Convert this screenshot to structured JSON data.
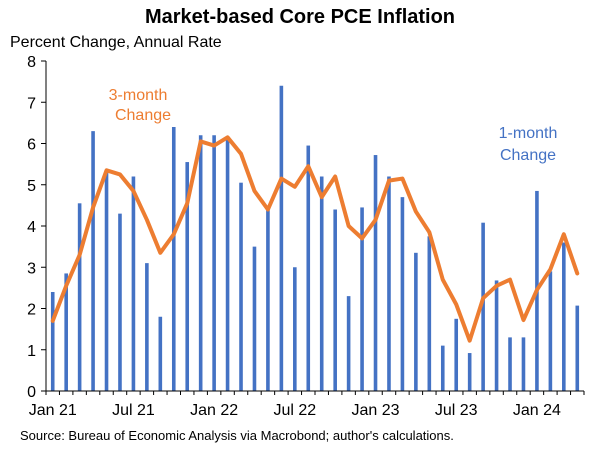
{
  "chart_data": {
    "type": "bar+line",
    "title": "Market-based Core PCE Inflation",
    "subtitle": "Percent Change, Annual Rate",
    "source": "Source: Bureau of Economic Analysis via Macrobond; author's calculations.",
    "ylim": [
      0,
      8
    ],
    "yticks": [
      0,
      1,
      2,
      3,
      4,
      5,
      6,
      7,
      8
    ],
    "x_tick_labels": [
      "Jan 21",
      "Jul 21",
      "Jan 22",
      "Jul 22",
      "Jan 23",
      "Jul 23",
      "Jan 24"
    ],
    "x_tick_month_index": [
      0,
      6,
      12,
      18,
      24,
      30,
      36
    ],
    "x_start": "2021-01",
    "x_end": "2024-04",
    "grid": false,
    "series": [
      {
        "name": "1-month Change",
        "kind": "bar",
        "color": "#4472C4",
        "values": [
          2.4,
          2.85,
          4.55,
          6.3,
          5.3,
          4.3,
          5.2,
          3.1,
          1.8,
          6.4,
          5.55,
          6.2,
          6.2,
          6.1,
          5.05,
          3.5,
          4.4,
          7.4,
          3.0,
          5.95,
          5.2,
          4.4,
          2.3,
          4.45,
          5.72,
          5.2,
          4.7,
          3.35,
          3.75,
          1.1,
          1.75,
          0.92,
          4.08,
          2.68,
          1.3,
          1.3,
          4.85,
          2.9,
          3.6,
          2.07
        ]
      },
      {
        "name": "3-month Change",
        "kind": "line",
        "color": "#ED7D31",
        "values": [
          1.7,
          2.55,
          3.3,
          4.45,
          5.35,
          5.25,
          4.85,
          4.15,
          3.35,
          3.8,
          4.55,
          6.05,
          5.95,
          6.15,
          5.75,
          4.85,
          4.4,
          5.15,
          4.95,
          5.45,
          4.7,
          5.2,
          4.0,
          3.7,
          4.15,
          5.1,
          5.15,
          4.35,
          3.85,
          2.7,
          2.1,
          1.22,
          2.25,
          2.55,
          2.7,
          1.72,
          2.45,
          2.95,
          3.8,
          2.85
        ]
      }
    ],
    "annotations": {
      "three_month": [
        "3-month",
        "Change"
      ],
      "one_month": [
        "1-month",
        "Change"
      ]
    }
  }
}
